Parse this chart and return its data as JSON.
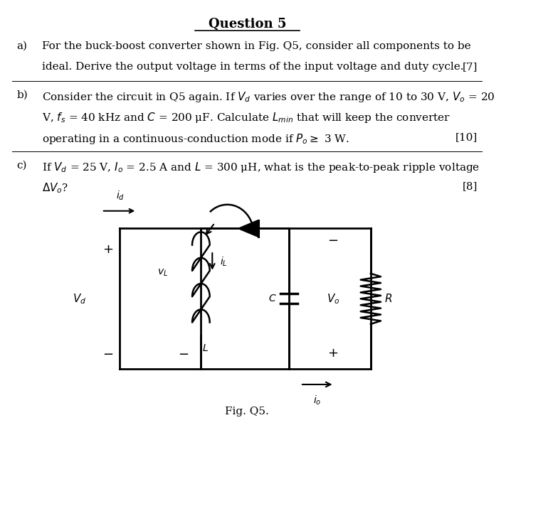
{
  "title": "Question 5",
  "bg_color": "#ffffff",
  "text_color": "#000000",
  "part_a_label": "a)",
  "part_a_line1": "For the buck-boost converter shown in Fig. Q5, consider all components to be",
  "part_a_line2": "ideal. Derive the output voltage in terms of the input voltage and duty cycle.",
  "part_a_marks": "[7]",
  "part_b_label": "b)",
  "part_b_line1": "Consider the circuit in Q5 again. If $V_d$ varies over the range of 10 to 30 V, $V_o$ = 20",
  "part_b_line2": "V, $f_s$ = 40 kHz and $C$ = 200 μF. Calculate $L_{min}$ that will keep the converter",
  "part_b_line3": "operating in a continuous-conduction mode if $P_o \\geq$ 3 W.",
  "part_b_marks": "[10]",
  "part_c_label": "c)",
  "part_c_line1": "If $V_d$ = 25 V, $I_o$ = 2.5 A and $L$ = 300 μH, what is the peak-to-peak ripple voltage",
  "part_c_line2": "$\\Delta V_o$?",
  "part_c_marks": "[8]",
  "fig_caption": "Fig. Q5."
}
